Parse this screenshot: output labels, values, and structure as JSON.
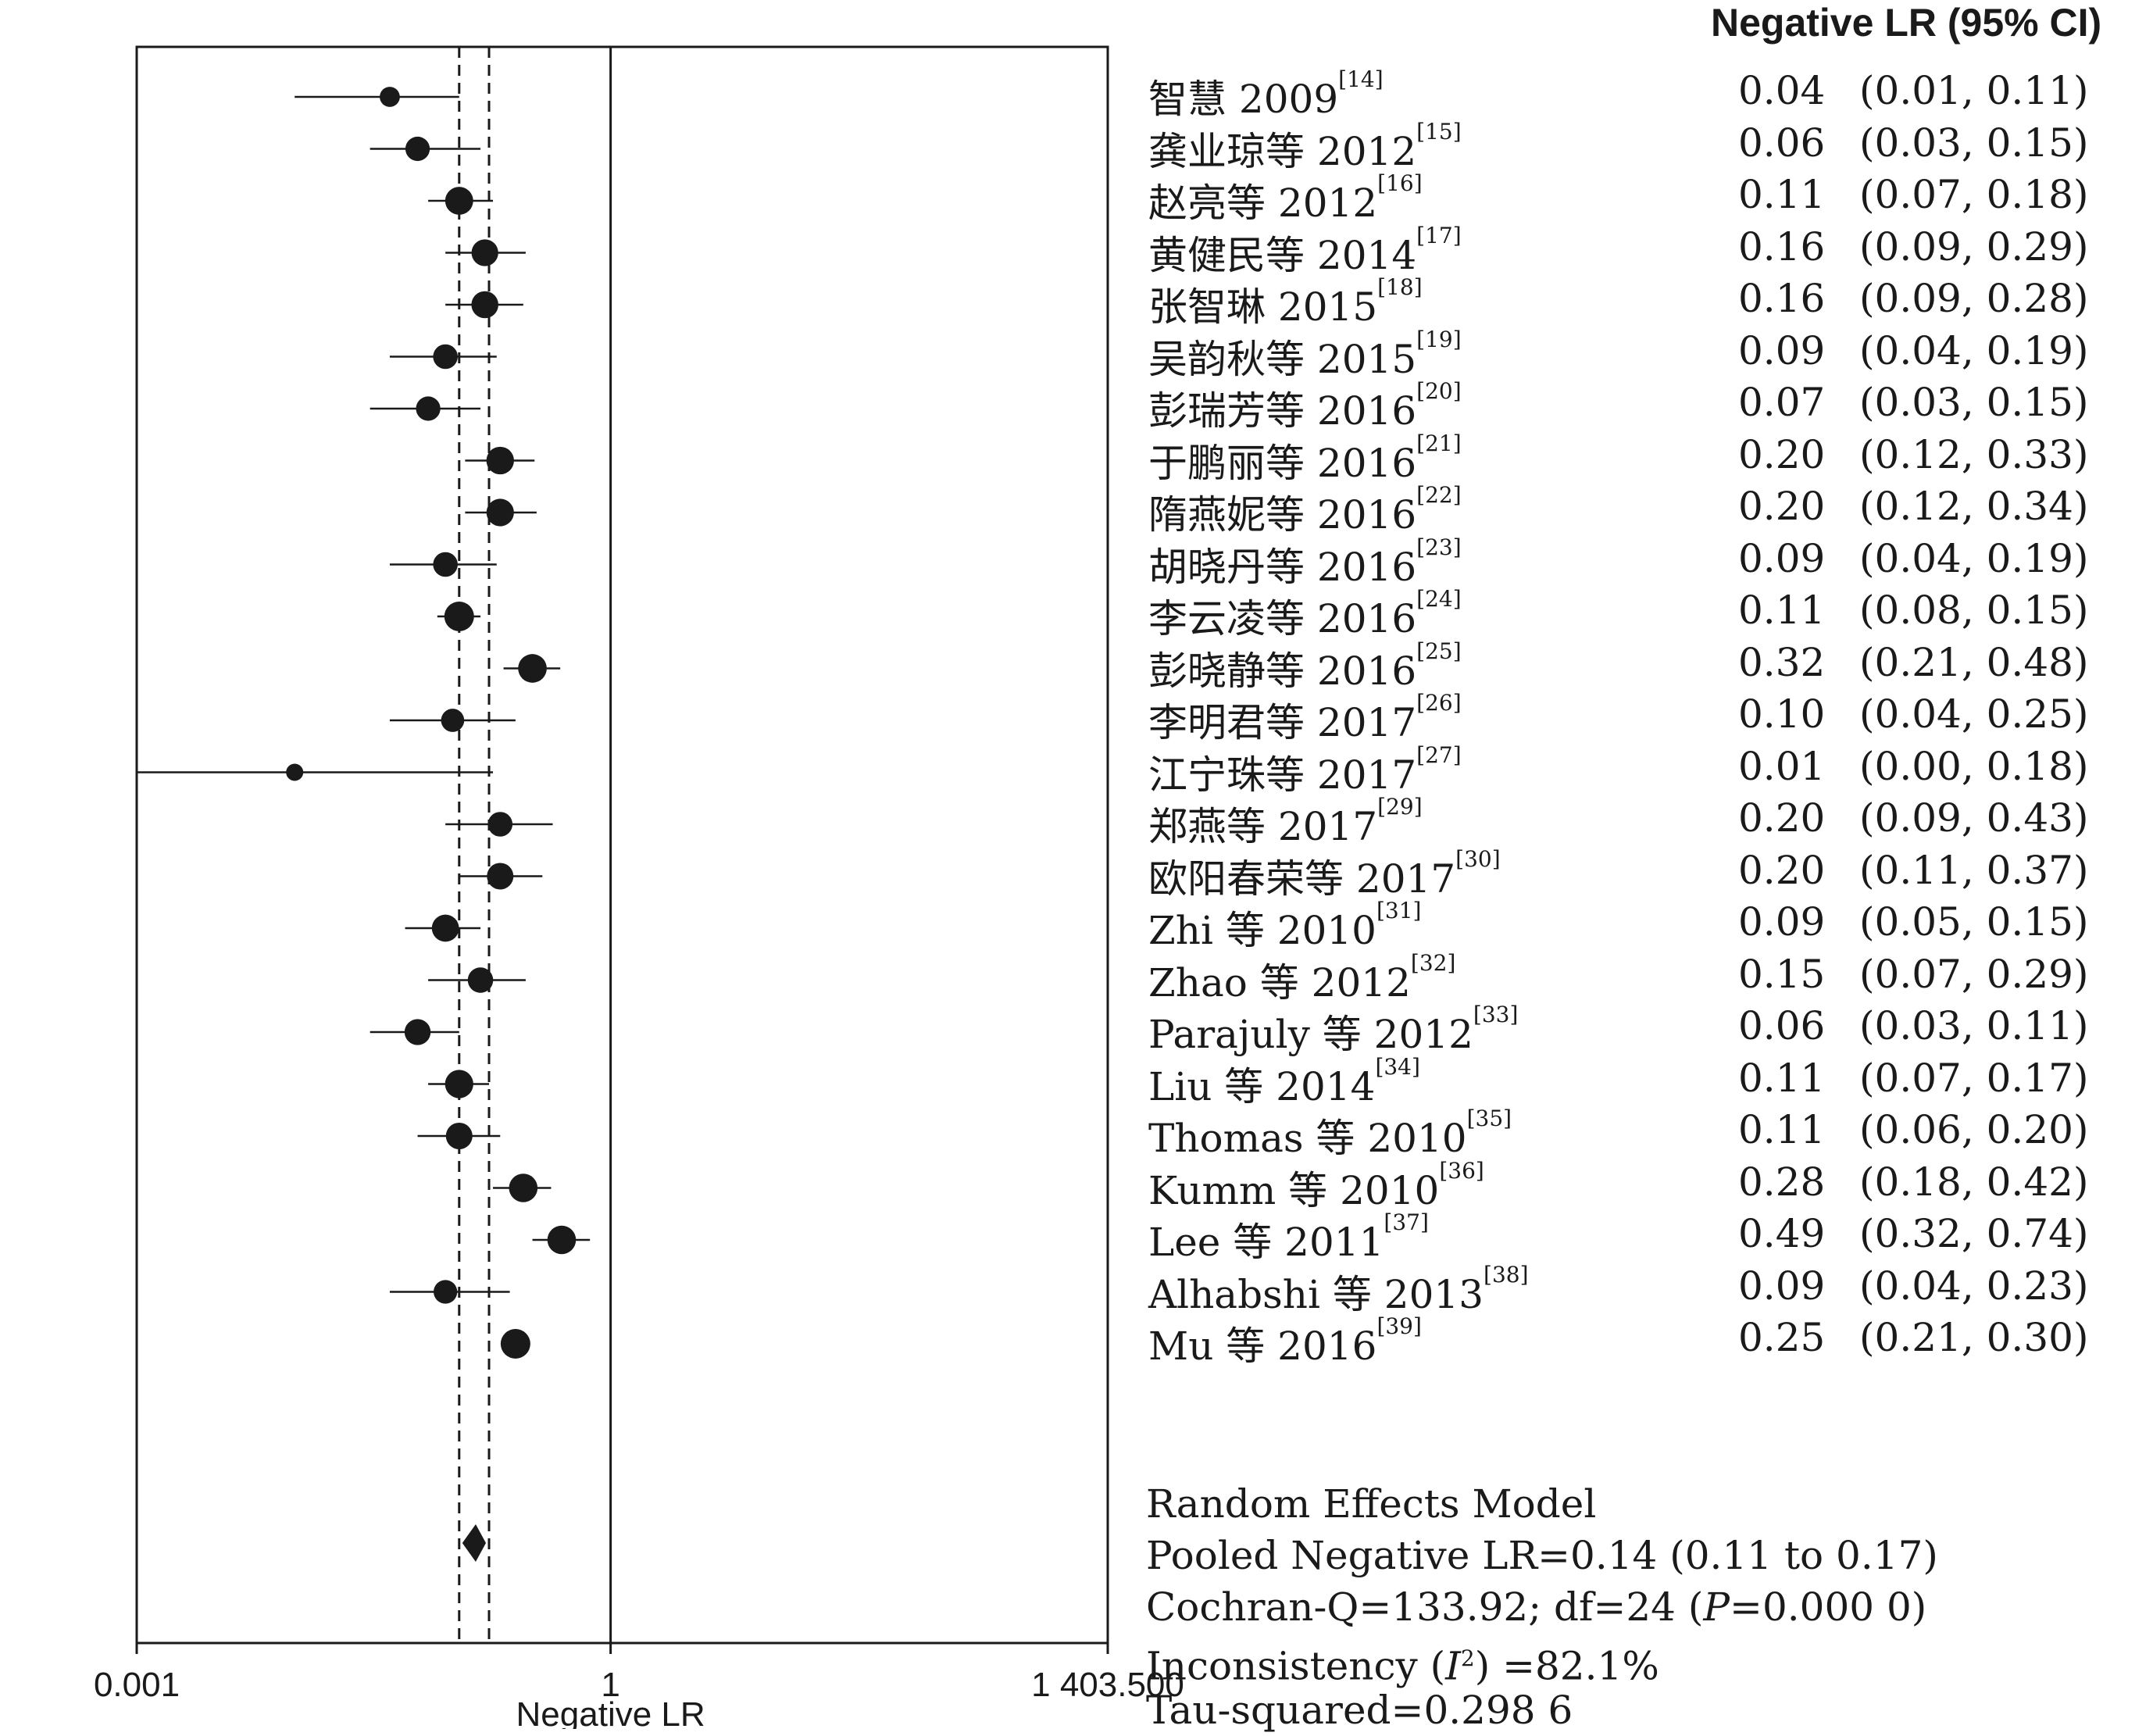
{
  "chart_data": {
    "type": "forest",
    "xlabel": "Negative LR",
    "xscale": "log",
    "xlim": [
      0.001,
      1403.5
    ],
    "ticks": [
      {
        "value": 0.001,
        "label": "0.001"
      },
      {
        "value": 1,
        "label": "1"
      },
      {
        "value": 1403.5,
        "label": "1 403.500"
      }
    ],
    "reference_line": 1,
    "pooled_ci_lines": [
      0.11,
      0.17
    ],
    "column_header": "Negative LR (95% CI)",
    "studies": [
      {
        "name": "智慧 2009",
        "ref": "[14]",
        "est": 0.04,
        "lo": 0.01,
        "hi": 0.11,
        "est_text": "0.04",
        "ci_text": "(0.01, 0.11)"
      },
      {
        "name": "龚业琼等 2012",
        "ref": "[15]",
        "est": 0.06,
        "lo": 0.03,
        "hi": 0.15,
        "est_text": "0.06",
        "ci_text": "(0.03, 0.15)"
      },
      {
        "name": "赵亮等 2012",
        "ref": "[16]",
        "est": 0.11,
        "lo": 0.07,
        "hi": 0.18,
        "est_text": "0.11",
        "ci_text": "(0.07, 0.18)"
      },
      {
        "name": "黄健民等 2014",
        "ref": "[17]",
        "est": 0.16,
        "lo": 0.09,
        "hi": 0.29,
        "est_text": "0.16",
        "ci_text": "(0.09, 0.29)"
      },
      {
        "name": "张智琳 2015",
        "ref": "[18]",
        "est": 0.16,
        "lo": 0.09,
        "hi": 0.28,
        "est_text": "0.16",
        "ci_text": "(0.09, 0.28)"
      },
      {
        "name": "吴韵秋等 2015",
        "ref": "[19]",
        "est": 0.09,
        "lo": 0.04,
        "hi": 0.19,
        "est_text": "0.09",
        "ci_text": "(0.04, 0.19)"
      },
      {
        "name": "彭瑞芳等 2016",
        "ref": "[20]",
        "est": 0.07,
        "lo": 0.03,
        "hi": 0.15,
        "est_text": "0.07",
        "ci_text": "(0.03, 0.15)"
      },
      {
        "name": "于鹏丽等 2016",
        "ref": "[21]",
        "est": 0.2,
        "lo": 0.12,
        "hi": 0.33,
        "est_text": "0.20",
        "ci_text": "(0.12, 0.33)"
      },
      {
        "name": "隋燕妮等 2016",
        "ref": "[22]",
        "est": 0.2,
        "lo": 0.12,
        "hi": 0.34,
        "est_text": "0.20",
        "ci_text": "(0.12, 0.34)"
      },
      {
        "name": "胡晓丹等 2016",
        "ref": "[23]",
        "est": 0.09,
        "lo": 0.04,
        "hi": 0.19,
        "est_text": "0.09",
        "ci_text": "(0.04, 0.19)"
      },
      {
        "name": "李云凌等 2016",
        "ref": "[24]",
        "est": 0.11,
        "lo": 0.08,
        "hi": 0.15,
        "est_text": "0.11",
        "ci_text": "(0.08, 0.15)"
      },
      {
        "name": "彭晓静等 2016",
        "ref": "[25]",
        "est": 0.32,
        "lo": 0.21,
        "hi": 0.48,
        "est_text": "0.32",
        "ci_text": "(0.21, 0.48)"
      },
      {
        "name": "李明君等 2017",
        "ref": "[26]",
        "est": 0.1,
        "lo": 0.04,
        "hi": 0.25,
        "est_text": "0.10",
        "ci_text": "(0.04, 0.25)"
      },
      {
        "name": "江宁珠等 2017",
        "ref": "[27]",
        "est": 0.01,
        "lo": 0.0,
        "hi": 0.18,
        "est_text": "0.01",
        "ci_text": "(0.00, 0.18)"
      },
      {
        "name": "郑燕等 2017",
        "ref": "[29]",
        "est": 0.2,
        "lo": 0.09,
        "hi": 0.43,
        "est_text": "0.20",
        "ci_text": "(0.09, 0.43)"
      },
      {
        "name": "欧阳春荣等 2017",
        "ref": "[30]",
        "est": 0.2,
        "lo": 0.11,
        "hi": 0.37,
        "est_text": "0.20",
        "ci_text": "(0.11, 0.37)"
      },
      {
        "name": "Zhi 等 2010",
        "ref": "[31]",
        "est": 0.09,
        "lo": 0.05,
        "hi": 0.15,
        "est_text": "0.09",
        "ci_text": "(0.05, 0.15)"
      },
      {
        "name": "Zhao 等 2012",
        "ref": "[32]",
        "est": 0.15,
        "lo": 0.07,
        "hi": 0.29,
        "est_text": "0.15",
        "ci_text": "(0.07, 0.29)"
      },
      {
        "name": "Parajuly 等 2012",
        "ref": "[33]",
        "est": 0.06,
        "lo": 0.03,
        "hi": 0.11,
        "est_text": "0.06",
        "ci_text": "(0.03, 0.11)"
      },
      {
        "name": "Liu 等 2014",
        "ref": "[34]",
        "est": 0.11,
        "lo": 0.07,
        "hi": 0.17,
        "est_text": "0.11",
        "ci_text": "(0.07, 0.17)"
      },
      {
        "name": "Thomas 等 2010",
        "ref": "[35]",
        "est": 0.11,
        "lo": 0.06,
        "hi": 0.2,
        "est_text": "0.11",
        "ci_text": "(0.06, 0.20)"
      },
      {
        "name": "Kumm 等 2010",
        "ref": "[36]",
        "est": 0.28,
        "lo": 0.18,
        "hi": 0.42,
        "est_text": "0.28",
        "ci_text": "(0.18, 0.42)"
      },
      {
        "name": "Lee 等 2011",
        "ref": "[37]",
        "est": 0.49,
        "lo": 0.32,
        "hi": 0.74,
        "est_text": "0.49",
        "ci_text": "(0.32, 0.74)"
      },
      {
        "name": "Alhabshi 等 2013",
        "ref": "[38]",
        "est": 0.09,
        "lo": 0.04,
        "hi": 0.23,
        "est_text": "0.09",
        "ci_text": "(0.04, 0.23)"
      },
      {
        "name": "Mu 等 2016",
        "ref": "[39]",
        "est": 0.25,
        "lo": 0.21,
        "hi": 0.3,
        "est_text": "0.25",
        "ci_text": "(0.21, 0.30)"
      }
    ],
    "pooled": {
      "est": 0.14,
      "lo": 0.11,
      "hi": 0.17
    },
    "summary": {
      "model": "Random Effects Model",
      "pooled_text": "Pooled Negative LR=0.14 (0.11 to 0.17)",
      "cochran_prefix": "Cochran-Q=133.92; df=24 (",
      "cochran_p": "P",
      "cochran_suffix": "=0.000 0)",
      "inconsistency_prefix": "Inconsistency (",
      "inconsistency_i": "I",
      "inconsistency_sup": "2",
      "inconsistency_suffix": ") =82.1%",
      "tau": "Tau-squared=0.298 6"
    }
  }
}
